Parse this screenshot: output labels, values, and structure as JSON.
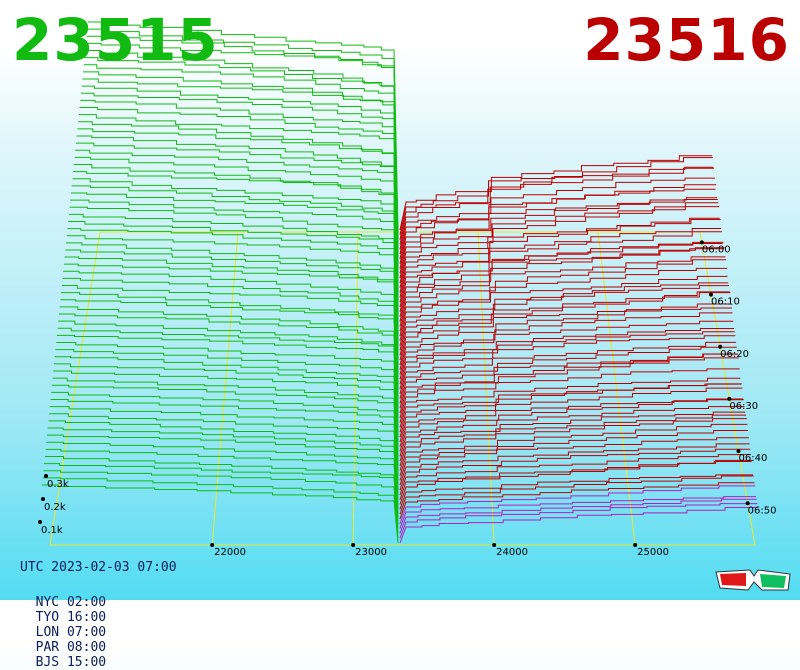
{
  "header": {
    "bid_price": "23515",
    "ask_price": "23516",
    "bid_color": "#11bb11",
    "ask_color": "#bb0000"
  },
  "footer": {
    "utc": "UTC 2023-02-03 07:00",
    "zones": [
      "NYC 02:00",
      "TYO 16:00",
      "LON 07:00",
      "PAR 08:00",
      "BJS 15:00"
    ]
  },
  "icons": {
    "glasses": "3d-glasses-icon"
  },
  "chart_data": {
    "type": "area",
    "title": "",
    "x_axis": {
      "ticks": [
        "22000",
        "23000",
        "24000",
        "25000"
      ],
      "range": [
        20850,
        25850
      ]
    },
    "y_axis": {
      "ticks": [
        "0.1k",
        "0.2k",
        "0.3k"
      ]
    },
    "time_axis": {
      "ticks": [
        "06:00",
        "06:10",
        "06:20",
        "06:30",
        "06:40",
        "06:50"
      ]
    },
    "series": [
      {
        "side": "bid",
        "color": "#11bb11",
        "mid_price": 23515
      },
      {
        "side": "ask",
        "color": "#bb0000",
        "mid_price": 23516
      }
    ],
    "grid": true
  }
}
